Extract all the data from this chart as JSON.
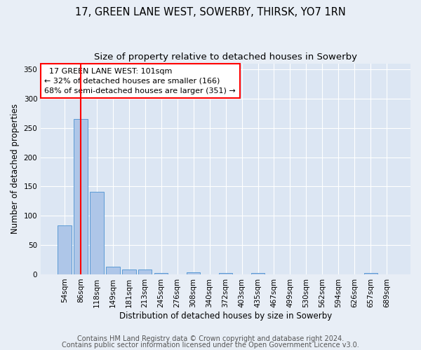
{
  "title1": "17, GREEN LANE WEST, SOWERBY, THIRSK, YO7 1RN",
  "title2": "Size of property relative to detached houses in Sowerby",
  "xlabel": "Distribution of detached houses by size in Sowerby",
  "ylabel": "Number of detached properties",
  "categories": [
    "54sqm",
    "86sqm",
    "118sqm",
    "149sqm",
    "181sqm",
    "213sqm",
    "245sqm",
    "276sqm",
    "308sqm",
    "340sqm",
    "372sqm",
    "403sqm",
    "435sqm",
    "467sqm",
    "499sqm",
    "530sqm",
    "562sqm",
    "594sqm",
    "626sqm",
    "657sqm",
    "689sqm"
  ],
  "values": [
    83,
    265,
    141,
    13,
    8,
    8,
    2,
    0,
    3,
    0,
    2,
    0,
    2,
    0,
    0,
    0,
    0,
    0,
    0,
    2,
    0
  ],
  "bar_color": "#aec6e8",
  "bar_edge_color": "#5b9bd5",
  "vline_x": 1.0,
  "vline_color": "red",
  "annotation_text": "  17 GREEN LANE WEST: 101sqm  \n← 32% of detached houses are smaller (166)\n68% of semi-detached houses are larger (351) →",
  "annotation_box_color": "white",
  "annotation_box_edge": "red",
  "ylim": [
    0,
    360
  ],
  "yticks": [
    0,
    50,
    100,
    150,
    200,
    250,
    300,
    350
  ],
  "footer1": "Contains HM Land Registry data © Crown copyright and database right 2024.",
  "footer2": "Contains public sector information licensed under the Open Government Licence v3.0.",
  "background_color": "#e8eef6",
  "plot_background": "#dce6f3",
  "grid_color": "white",
  "title1_fontsize": 10.5,
  "title2_fontsize": 9.5,
  "xlabel_fontsize": 8.5,
  "ylabel_fontsize": 8.5,
  "tick_fontsize": 7.5,
  "annotation_fontsize": 8,
  "footer_fontsize": 7
}
